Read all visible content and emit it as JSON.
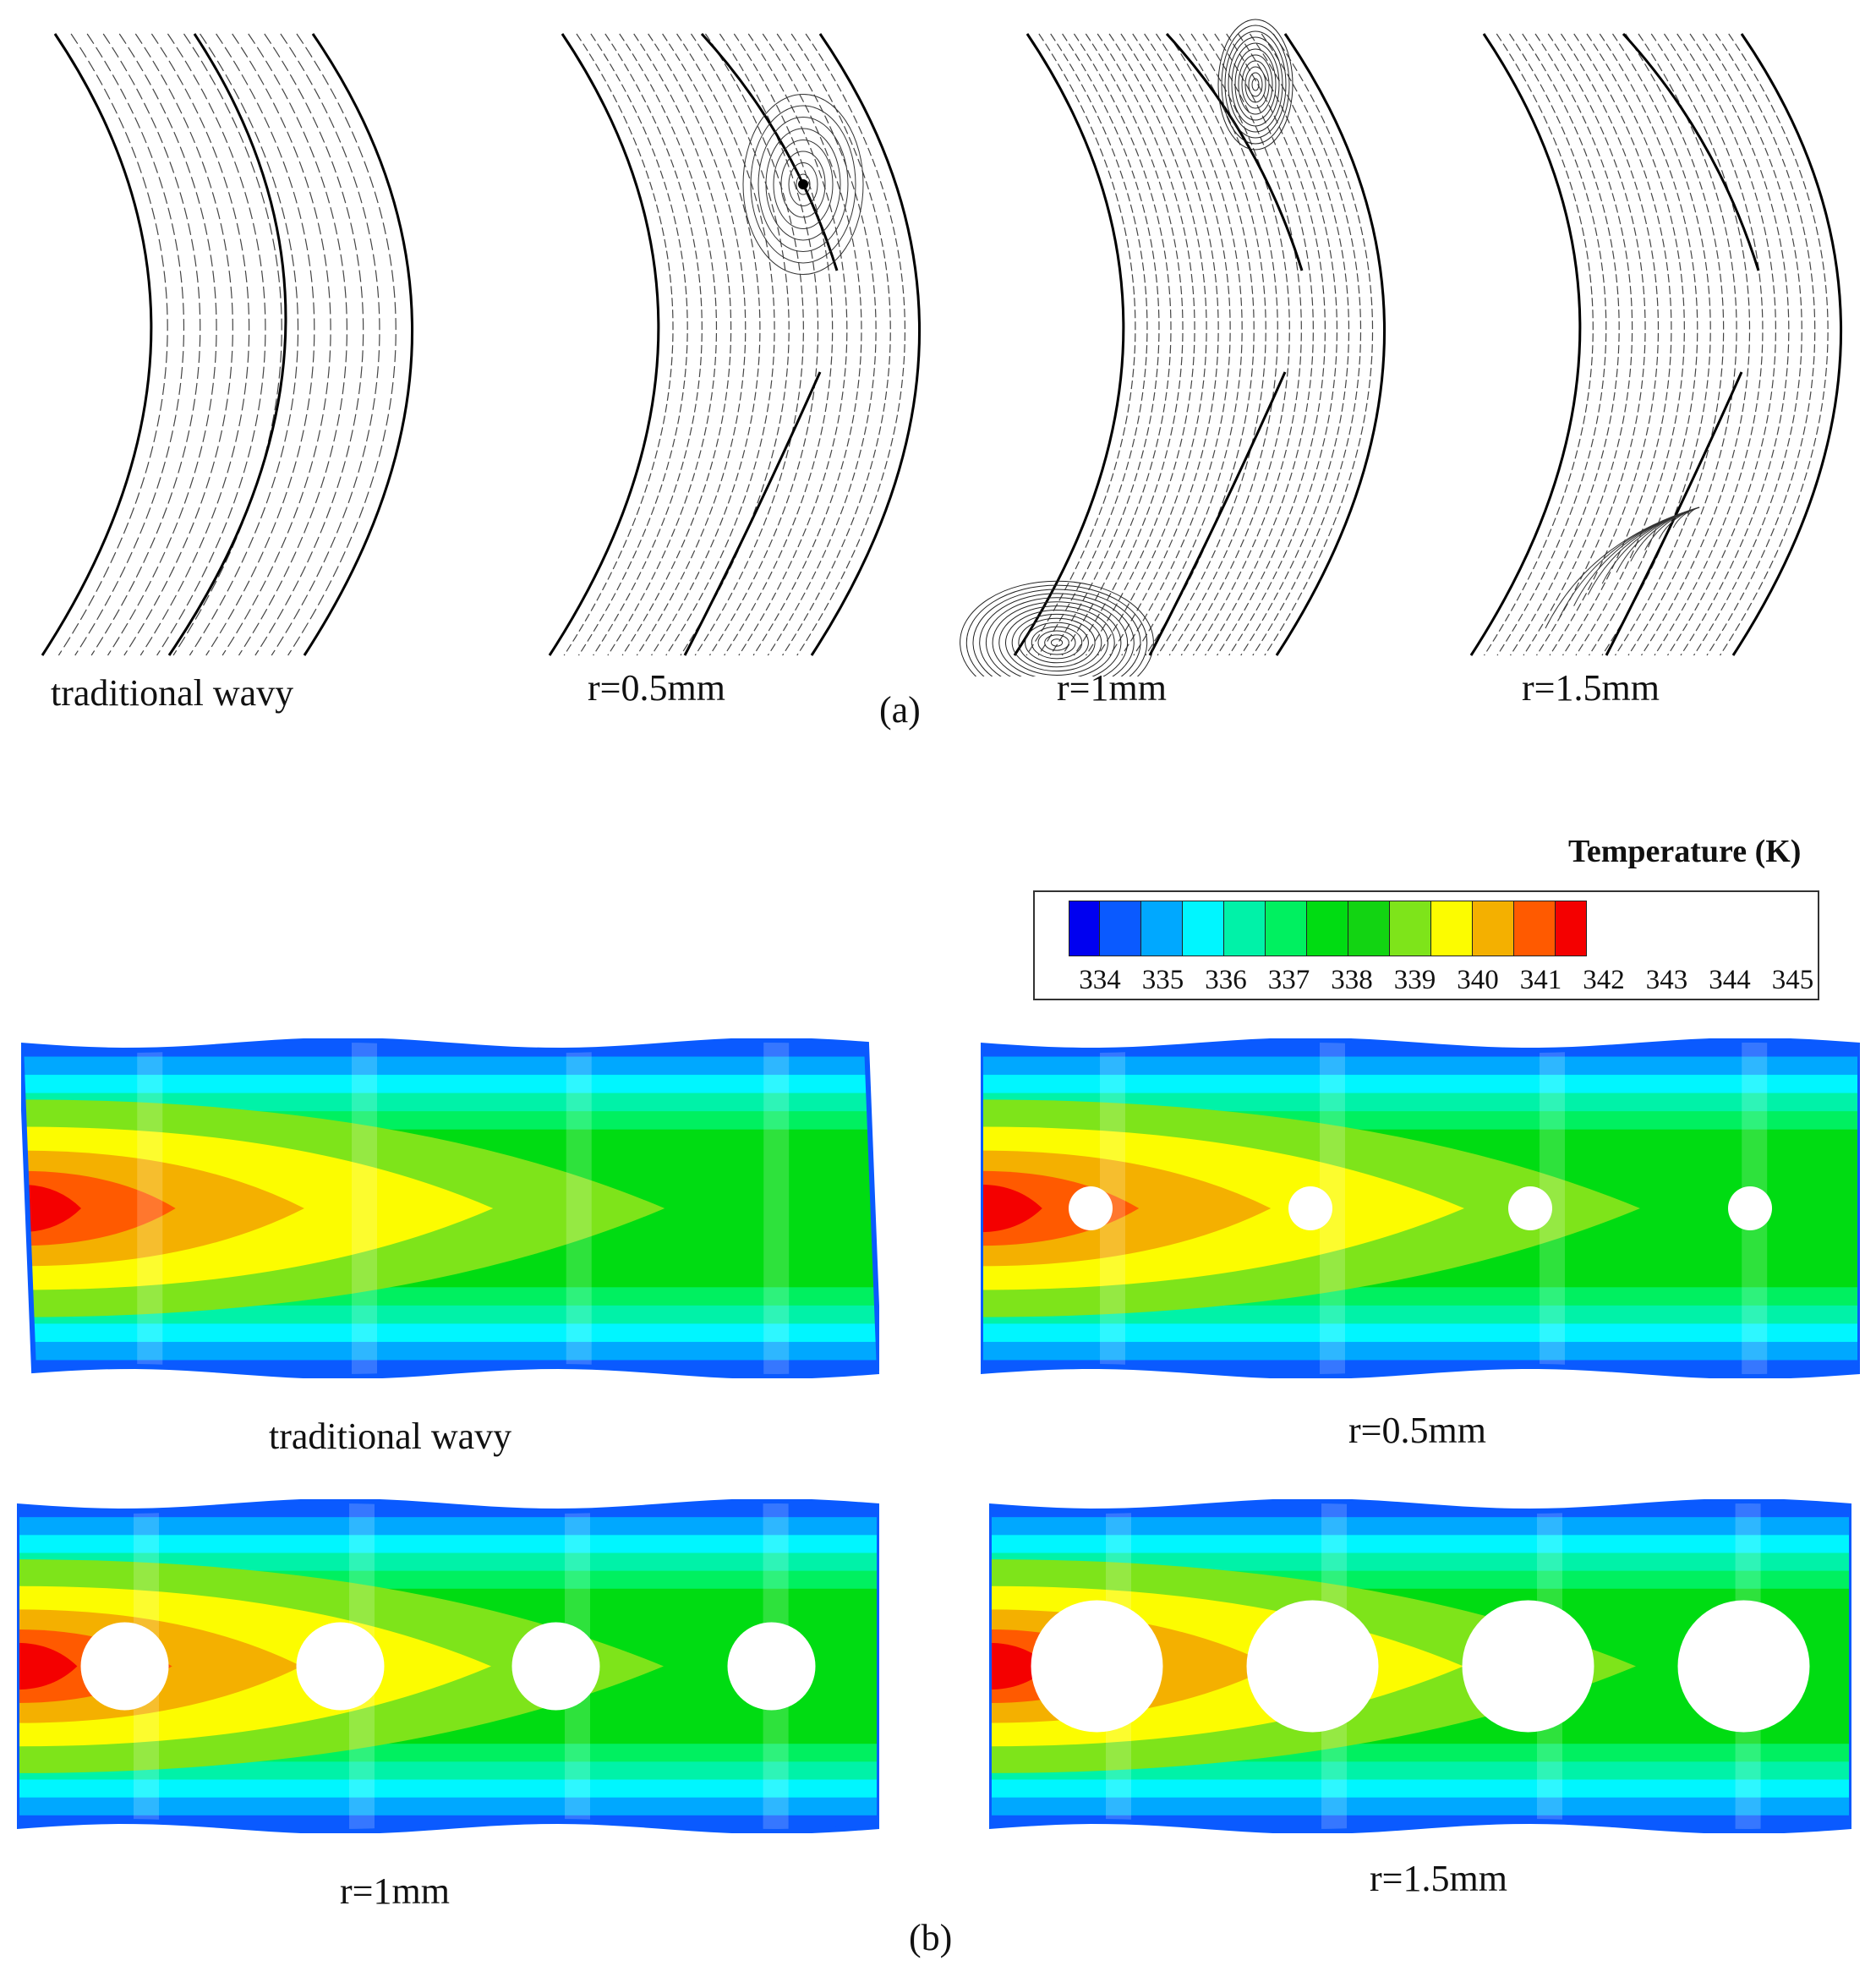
{
  "figure": {
    "part_a_label": "(a)",
    "part_b_label": "(b)"
  },
  "streamline_panels": [
    {
      "label": "traditional wavy",
      "case": "traditional"
    },
    {
      "label": "r=0.5mm",
      "case": "r05"
    },
    {
      "label": "r=1mm",
      "case": "r1"
    },
    {
      "label": "r=1.5mm",
      "case": "r15"
    }
  ],
  "legend": {
    "title": "Temperature (K)",
    "levels": [
      334,
      335,
      336,
      337,
      338,
      339,
      340,
      341,
      342,
      343,
      344,
      345
    ],
    "colors": [
      "#0000f0",
      "#0a5aff",
      "#00a8ff",
      "#00f6ff",
      "#00f2a8",
      "#00f060",
      "#00dc12",
      "#12d412",
      "#7ee41a",
      "#fcfc00",
      "#f4b000",
      "#ff5a00",
      "#f40000"
    ]
  },
  "contour_panels": [
    {
      "label": "traditional wavy",
      "hole_radius_mm": 0
    },
    {
      "label": "r=0.5mm",
      "hole_radius_mm": 0.5
    },
    {
      "label": "r=1mm",
      "hole_radius_mm": 1
    },
    {
      "label": "r=1.5mm",
      "hole_radius_mm": 1.5
    }
  ]
}
